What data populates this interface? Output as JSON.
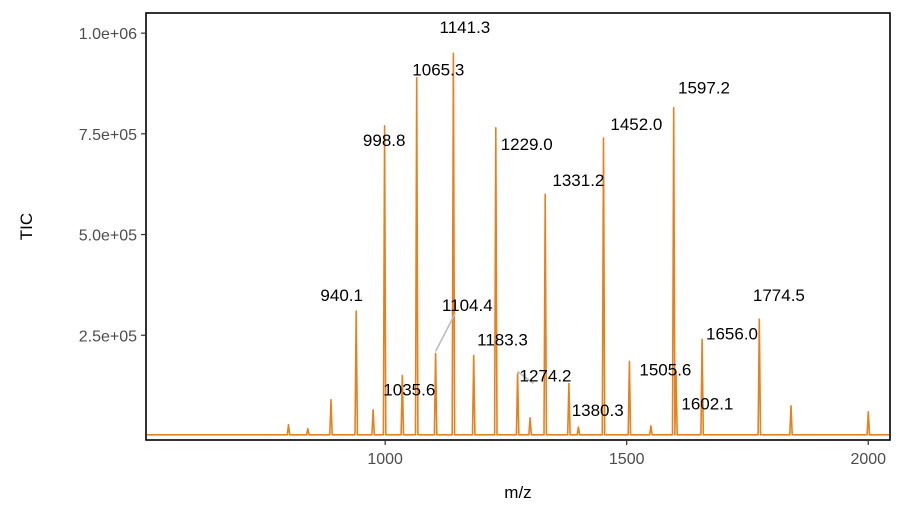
{
  "chart_data": {
    "type": "line",
    "xlabel": "m/z",
    "ylabel": "TIC",
    "xlim": [
      505,
      2045
    ],
    "ylim": [
      -10000,
      1050000
    ],
    "x_ticks": [
      1000,
      1500,
      2000
    ],
    "x_tick_labels": [
      "1000",
      "1500",
      "2000"
    ],
    "y_ticks": [
      250000,
      500000,
      750000,
      1000000
    ],
    "y_tick_labels": [
      "2.5e+05",
      "5.0e+05",
      "7.5e+05",
      "1.0e+06"
    ],
    "grid": false,
    "legend": "none",
    "line_color": "#E6811F",
    "series": [
      {
        "peaks": [
          {
            "mz": 800,
            "tic": 28000
          },
          {
            "mz": 840,
            "tic": 18000
          },
          {
            "mz": 888,
            "tic": 90000
          },
          {
            "mz": 940.1,
            "tic": 310000
          },
          {
            "mz": 975,
            "tic": 65000
          },
          {
            "mz": 998.8,
            "tic": 770000
          },
          {
            "mz": 1035.6,
            "tic": 150000
          },
          {
            "mz": 1065.3,
            "tic": 890000
          },
          {
            "mz": 1104.4,
            "tic": 205000
          },
          {
            "mz": 1141.3,
            "tic": 950000
          },
          {
            "mz": 1183.3,
            "tic": 200000
          },
          {
            "mz": 1229.0,
            "tic": 765000
          },
          {
            "mz": 1274.2,
            "tic": 155000
          },
          {
            "mz": 1300,
            "tic": 45000
          },
          {
            "mz": 1331.2,
            "tic": 600000
          },
          {
            "mz": 1380.3,
            "tic": 130000
          },
          {
            "mz": 1400,
            "tic": 22000
          },
          {
            "mz": 1452.0,
            "tic": 740000
          },
          {
            "mz": 1505.6,
            "tic": 185000
          },
          {
            "mz": 1550,
            "tic": 25000
          },
          {
            "mz": 1597.2,
            "tic": 815000
          },
          {
            "mz": 1602.1,
            "tic": 160000
          },
          {
            "mz": 1656.0,
            "tic": 240000
          },
          {
            "mz": 1774.5,
            "tic": 290000
          },
          {
            "mz": 1840,
            "tic": 75000
          },
          {
            "mz": 2000,
            "tic": 60000
          }
        ]
      }
    ],
    "annotations": [
      {
        "label": "940.1",
        "mz": 940.1,
        "tic": 310000,
        "text_mz": 910,
        "text_tic": 350000
      },
      {
        "label": "998.8",
        "mz": 998.8,
        "tic": 770000,
        "text_mz": 998,
        "text_tic": 735000
      },
      {
        "label": "1035.6",
        "mz": 1035.6,
        "tic": 150000,
        "text_mz": 1050,
        "text_tic": 115000
      },
      {
        "label": "1065.3",
        "mz": 1065.3,
        "tic": 890000,
        "text_mz": 1110,
        "text_tic": 910000
      },
      {
        "label": "1104.4",
        "mz": 1104.4,
        "tic": 205000,
        "text_mz": 1170,
        "text_tic": 325000,
        "leader": true
      },
      {
        "label": "1141.3",
        "mz": 1141.3,
        "tic": 950000,
        "text_mz": 1165,
        "text_tic": 1015000
      },
      {
        "label": "1183.3",
        "mz": 1183.3,
        "tic": 200000,
        "text_mz": 1243,
        "text_tic": 240000
      },
      {
        "label": "1229.0",
        "mz": 1229.0,
        "tic": 765000,
        "text_mz": 1293,
        "text_tic": 725000
      },
      {
        "label": "1274.2",
        "mz": 1274.2,
        "tic": 155000,
        "text_mz": 1332,
        "text_tic": 150000,
        "leader": true
      },
      {
        "label": "1331.2",
        "mz": 1331.2,
        "tic": 600000,
        "text_mz": 1400,
        "text_tic": 635000
      },
      {
        "label": "1380.3",
        "mz": 1380.3,
        "tic": 130000,
        "text_mz": 1440,
        "text_tic": 65000
      },
      {
        "label": "1452.0",
        "mz": 1452.0,
        "tic": 740000,
        "text_mz": 1520,
        "text_tic": 775000
      },
      {
        "label": "1505.6",
        "mz": 1505.6,
        "tic": 185000,
        "text_mz": 1580,
        "text_tic": 165000
      },
      {
        "label": "1597.2",
        "mz": 1597.2,
        "tic": 815000,
        "text_mz": 1660,
        "text_tic": 865000
      },
      {
        "label": "1602.1",
        "mz": 1602.1,
        "tic": 160000,
        "text_mz": 1667,
        "text_tic": 80000
      },
      {
        "label": "1656.0",
        "mz": 1656.0,
        "tic": 240000,
        "text_mz": 1718,
        "text_tic": 255000
      },
      {
        "label": "1774.5",
        "mz": 1774.5,
        "tic": 290000,
        "text_mz": 1815,
        "text_tic": 350000
      }
    ]
  }
}
